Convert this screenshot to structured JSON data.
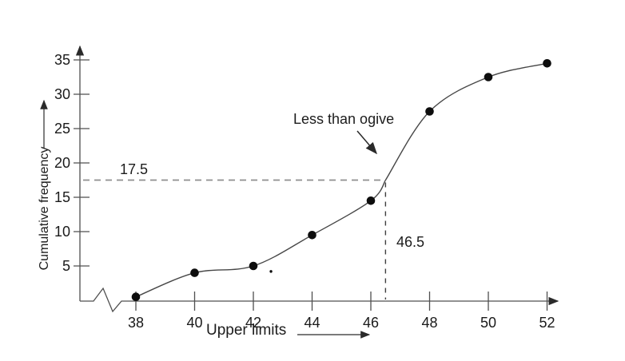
{
  "figure": {
    "background": "#ffffff",
    "text_color": "#1c1c1c"
  },
  "chart_data": {
    "type": "line",
    "title": "",
    "xlabel": "Upper limits",
    "ylabel": "Cumulative frequency",
    "x": [
      38,
      40,
      42,
      44,
      46,
      48,
      50,
      52
    ],
    "series": [
      {
        "name": "Less than ogive",
        "values": [
          0.5,
          4,
          5,
          9.5,
          14.5,
          27.5,
          32.5,
          34.5
        ]
      }
    ],
    "x_ticks": [
      38,
      40,
      42,
      44,
      46,
      48,
      50,
      52
    ],
    "y_ticks": [
      5,
      10,
      15,
      20,
      25,
      30,
      35
    ],
    "xlim": [
      37,
      53.5
    ],
    "ylim": [
      0,
      37.5
    ],
    "grid": false,
    "legend": "none",
    "x_axis_break_near_origin": true,
    "marker_style": "filled-circle",
    "colors": {
      "marker": "#0d0d0d",
      "curve": "#474747",
      "axis": "#4f4f4f",
      "dashed_guide_horizontal": "#8f8f8f",
      "dashed_guide_vertical": "#3f3f3f",
      "arrow": "#2a2a2a"
    },
    "annotations": {
      "curve_label": "Less than ogive",
      "median_cf_label": "17.5",
      "median_cf_value": 17.5,
      "median_x_label": "46.5",
      "median_x_value": 46.5
    },
    "curve_through_point": {
      "x": 46.5,
      "y": 17.5
    },
    "stray_speck": {
      "x": 42.6,
      "y": 4.2
    }
  }
}
